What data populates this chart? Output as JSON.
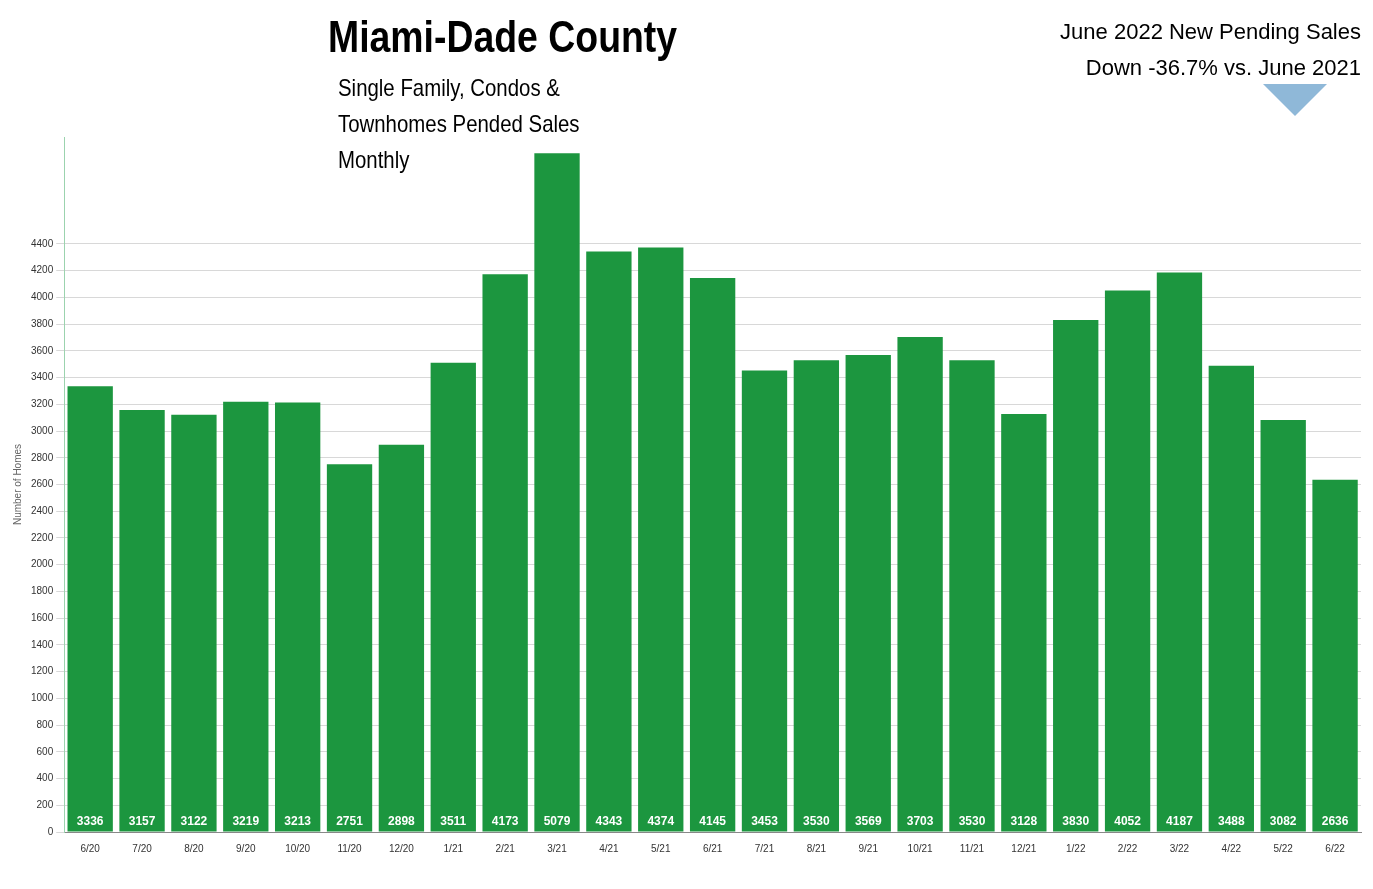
{
  "chart_data": {
    "type": "bar",
    "title": "Miami-Dade County",
    "subtitle": "Single Family, Condos & Townhomes Pended Sales Monthly",
    "annotations": [
      "June 2022 New Pending Sales",
      "Down -36.7% vs. June 2021"
    ],
    "ylabel": "Number of Homes",
    "categories": [
      "6/20",
      "7/20",
      "8/20",
      "9/20",
      "10/20",
      "11/20",
      "12/20",
      "1/21",
      "2/21",
      "3/21",
      "4/21",
      "5/21",
      "6/21",
      "7/21",
      "8/21",
      "9/21",
      "10/21",
      "11/21",
      "12/21",
      "1/22",
      "2/22",
      "3/22",
      "4/22",
      "5/22",
      "6/22"
    ],
    "values": [
      3336,
      3157,
      3122,
      3219,
      3213,
      2751,
      2898,
      3511,
      4173,
      5079,
      4343,
      4374,
      4145,
      3453,
      3530,
      3569,
      3703,
      3530,
      3128,
      3830,
      4052,
      4187,
      3488,
      3082,
      2636
    ],
    "color": "#1c963f",
    "data_labels": true,
    "grid": "y",
    "legend": false,
    "ylim": [
      0,
      5200
    ],
    "yticks": [
      0,
      200,
      400,
      600,
      800,
      1000,
      1200,
      1400,
      1600,
      1800,
      2000,
      2200,
      2400,
      2600,
      2800,
      3000,
      3200,
      3400,
      3600,
      3800,
      4000,
      4200,
      4400
    ]
  }
}
